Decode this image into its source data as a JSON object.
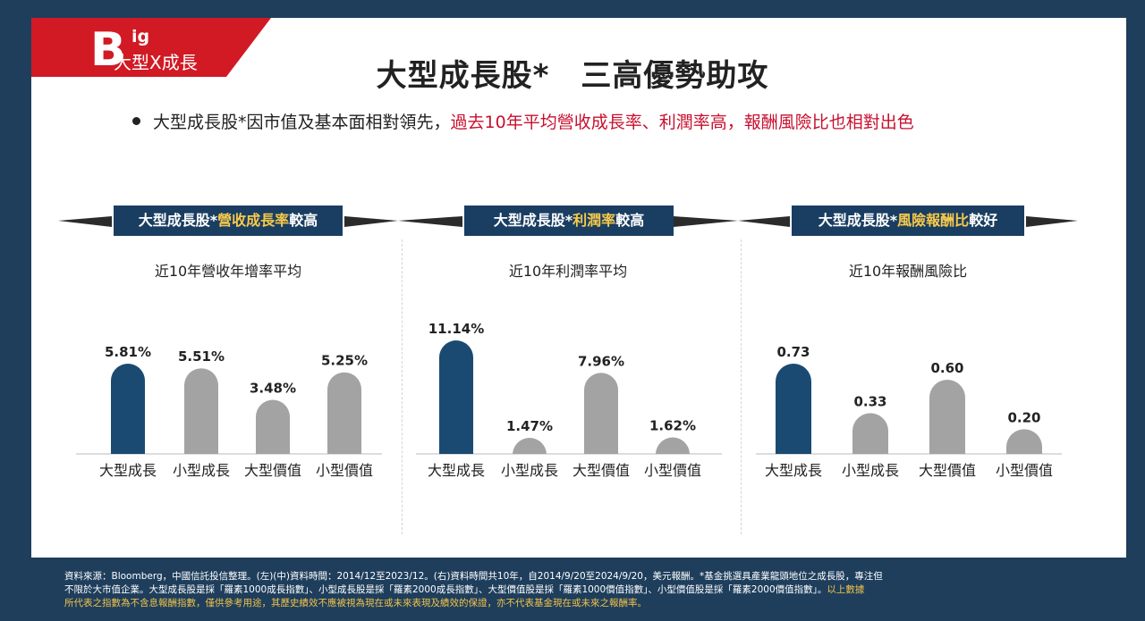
{
  "logo": {
    "letter": "B",
    "ig": "ig",
    "sub": "大型X成長"
  },
  "title": "大型成長股*　三高優勢助攻",
  "bullet": {
    "black": "大型成長股*因市值及基本面相對領先，",
    "red": "過去10年平均營收成長率、利潤率高，報酬風險比也相對出色"
  },
  "panels": [
    {
      "banner_pre": "大型成長股*",
      "banner_hl": "營收成長率",
      "banner_post": "較高",
      "subtitle": "近10年營收年增率平均"
    },
    {
      "banner_pre": "大型成長股*",
      "banner_hl": "利潤率",
      "banner_post": "較高",
      "subtitle": "近10年利潤率平均"
    },
    {
      "banner_pre": "大型成長股*",
      "banner_hl": "風險報酬比",
      "banner_post": "較好",
      "subtitle": "近10年報酬風險比"
    }
  ],
  "colors": {
    "highlight": "#1a4a72",
    "other": "#a3a3a3",
    "accent_red": "#c8102e",
    "banner": "#1a3e62",
    "banner_text_hl": "#f6c94a"
  },
  "chart_data": [
    {
      "type": "bar",
      "title": "近10年營收年增率平均",
      "categories": [
        "大型成長",
        "小型成長",
        "大型價值",
        "小型價值"
      ],
      "values": [
        5.81,
        5.51,
        3.48,
        5.25
      ],
      "labels": [
        "5.81%",
        "5.51%",
        "3.48%",
        "5.25%"
      ]
    },
    {
      "type": "bar",
      "title": "近10年利潤率平均",
      "categories": [
        "大型成長",
        "小型成長",
        "大型價值",
        "小型價值"
      ],
      "values": [
        11.14,
        1.47,
        7.96,
        1.62
      ],
      "labels": [
        "11.14%",
        "1.47%",
        "7.96%",
        "1.62%"
      ]
    },
    {
      "type": "bar",
      "title": "近10年報酬風險比",
      "categories": [
        "大型成長",
        "小型成長",
        "大型價值",
        "小型價值"
      ],
      "values": [
        0.73,
        0.33,
        0.6,
        0.2
      ],
      "labels": [
        "0.73",
        "0.33",
        "0.60",
        "0.20"
      ]
    }
  ],
  "footer": {
    "line1": "資料來源：Bloomberg，中國信託投信整理。(左)(中)資料時間：2014/12至2023/12。(右)資料時間共10年，自2014/9/20至2024/9/20，美元報酬。*基金挑選具產業龍頭地位之成長股，專注但",
    "line2": "不限於大市值企業。大型成長股是採「羅素1000成長指數」、小型成長股是採「羅素2000成長指數」、大型價值股是採「羅素1000價值指數」、小型價值股是採「羅素2000價值指數」。",
    "line2_yellow": "以上數據",
    "line3": "所代表之指數為不含息報酬指數，僅供參考用途，其歷史績效不應被視為現在或未來表現及績效的保證，亦不代表基金現在或未來之報酬率。"
  }
}
